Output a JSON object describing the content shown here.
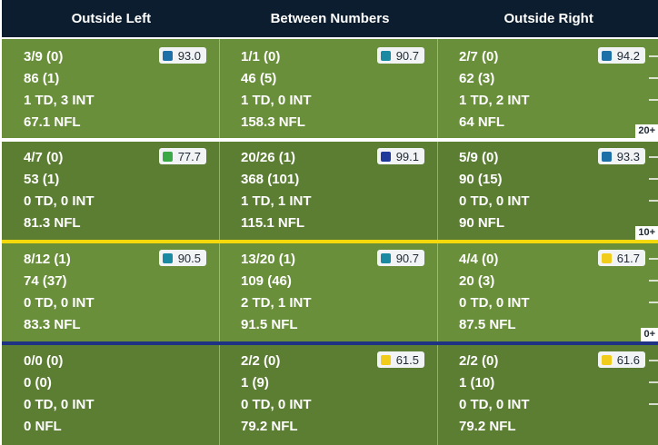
{
  "colors": {
    "header_bg": "#0b1d2e",
    "field_light": "#6a8f3a",
    "field_dark": "#5c7e33",
    "line_white": "#ffffff",
    "line_yellow": "#f5d90a",
    "line_blue": "#1f3385",
    "grade_teal": "#1a8aa3",
    "grade_blue": "#1d6fa8",
    "grade_darkblue": "#1f3a9a",
    "grade_green": "#3aa845",
    "grade_yellow": "#f2cc1a"
  },
  "chart_data": {
    "type": "table",
    "columns": [
      "Outside Left",
      "Between Numbers",
      "Outside Right"
    ],
    "zones": [
      {
        "depth_label": "20+",
        "cells": [
          {
            "comp": "3/9 (0)",
            "yards": "86 (1)",
            "td_int": "1 TD, 3 INT",
            "rating": "67.1 NFL",
            "grade": "93.0",
            "grade_color": "#1d6fa8"
          },
          {
            "comp": "1/1 (0)",
            "yards": "46 (5)",
            "td_int": "1 TD, 0 INT",
            "rating": "158.3 NFL",
            "grade": "90.7",
            "grade_color": "#1a8aa3"
          },
          {
            "comp": "2/7 (0)",
            "yards": "62 (3)",
            "td_int": "1 TD, 2 INT",
            "rating": "64 NFL",
            "grade": "94.2",
            "grade_color": "#1d6fa8"
          }
        ]
      },
      {
        "depth_label": "10+",
        "cells": [
          {
            "comp": "4/7 (0)",
            "yards": "53 (1)",
            "td_int": "0 TD, 0 INT",
            "rating": "81.3 NFL",
            "grade": "77.7",
            "grade_color": "#3aa845"
          },
          {
            "comp": "20/26 (1)",
            "yards": "368 (101)",
            "td_int": "1 TD, 1 INT",
            "rating": "115.1 NFL",
            "grade": "99.1",
            "grade_color": "#1f3a9a"
          },
          {
            "comp": "5/9 (0)",
            "yards": "90 (15)",
            "td_int": "0 TD, 0 INT",
            "rating": "90 NFL",
            "grade": "93.3",
            "grade_color": "#1d6fa8"
          }
        ]
      },
      {
        "depth_label": "0+",
        "cells": [
          {
            "comp": "8/12 (1)",
            "yards": "74 (37)",
            "td_int": "0 TD, 0 INT",
            "rating": "83.3 NFL",
            "grade": "90.5",
            "grade_color": "#1a8aa3"
          },
          {
            "comp": "13/20 (1)",
            "yards": "109 (46)",
            "td_int": "2 TD, 1 INT",
            "rating": "91.5 NFL",
            "grade": "90.7",
            "grade_color": "#1a8aa3"
          },
          {
            "comp": "4/4 (0)",
            "yards": "20 (3)",
            "td_int": "0 TD, 0 INT",
            "rating": "87.5 NFL",
            "grade": "61.7",
            "grade_color": "#f2cc1a"
          }
        ]
      },
      {
        "depth_label": "",
        "cells": [
          {
            "comp": "0/0 (0)",
            "yards": "0 (0)",
            "td_int": "0 TD, 0 INT",
            "rating": "0 NFL",
            "grade": "",
            "grade_color": ""
          },
          {
            "comp": "2/2 (0)",
            "yards": "1 (9)",
            "td_int": "0 TD, 0 INT",
            "rating": "79.2 NFL",
            "grade": "61.5",
            "grade_color": "#f2cc1a"
          },
          {
            "comp": "2/2 (0)",
            "yards": "1 (10)",
            "td_int": "0 TD, 0 INT",
            "rating": "79.2 NFL",
            "grade": "61.6",
            "grade_color": "#f2cc1a"
          }
        ]
      }
    ]
  }
}
